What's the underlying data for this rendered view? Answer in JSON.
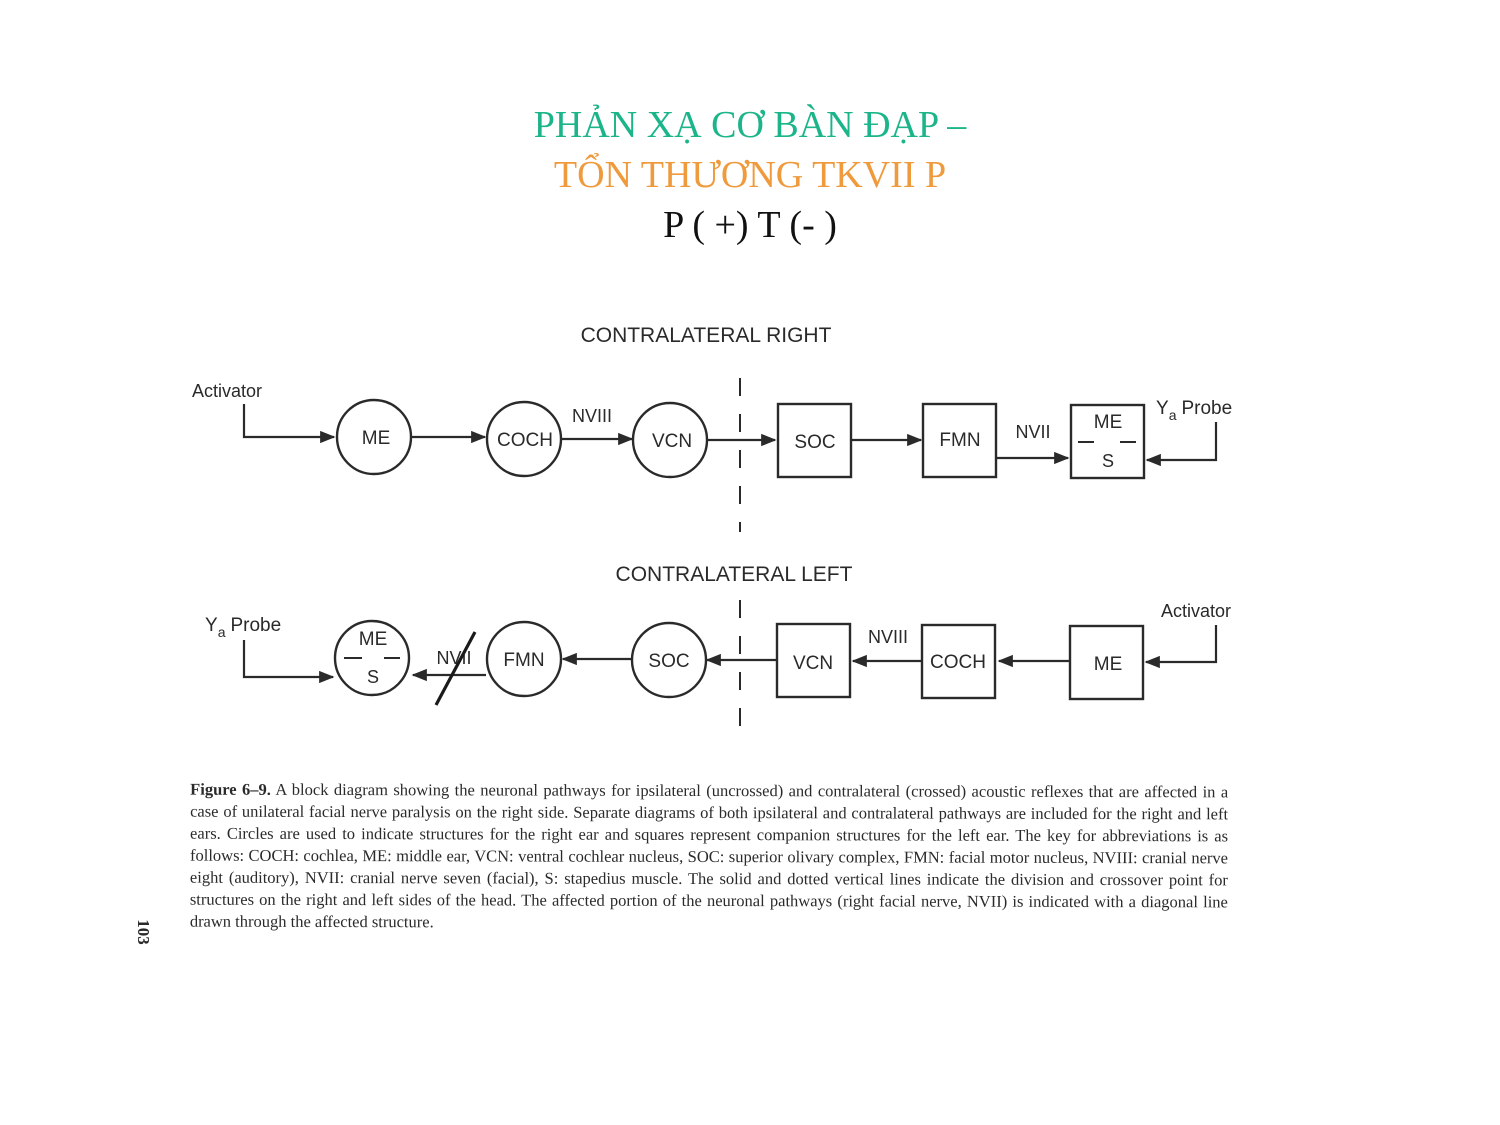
{
  "slide": {
    "title_line_1": "PHẢN XẠ CƠ BÀN ĐẠP –",
    "title_line_2": "TỔN THƯƠNG TKVII P",
    "title_line_3": "P ( +) T (- )",
    "colors": {
      "line_1": "#1cb58a",
      "line_2": "#ef9a3c",
      "line_3": "#111111"
    }
  },
  "diagram": {
    "right": {
      "heading": "CONTRALATERAL RIGHT",
      "activator": "Activator",
      "probe_y": "Y",
      "probe_sub": "a",
      "probe_word": "Probe",
      "me": "ME",
      "coch": "COCH",
      "nviii": "NVIII",
      "vcn": "VCN",
      "soc": "SOC",
      "fmn": "FMN",
      "nvii": "NVII",
      "mes_top": "ME",
      "mes_bottom": "S"
    },
    "left": {
      "heading": "CONTRALATERAL LEFT",
      "activator": "Activator",
      "probe_y": "Y",
      "probe_sub": "a",
      "probe_word": "Probe",
      "me": "ME",
      "coch": "COCH",
      "nviii": "NVIII",
      "vcn": "VCN",
      "soc": "SOC",
      "fmn": "FMN",
      "nvii": "NVII",
      "mes_top": "ME",
      "mes_bottom": "S"
    }
  },
  "caption": {
    "label": "Figure 6–9.",
    "text": "A block diagram showing the neuronal pathways for ipsilateral (uncrossed) and contralateral (crossed) acoustic reflexes that are affected in a case of unilateral facial nerve paralysis on the right side. Separate diagrams of both ipsilateral and contralateral pathways are included for the right and left ears. Circles are used to indicate structures for the right ear and squares represent companion structures for the left ear. The key for abbreviations is as follows: COCH: cochlea, ME: middle ear, VCN: ventral cochlear nucleus, SOC: superior olivary complex, FMN: facial motor nucleus, NVIII: cranial nerve eight (auditory), NVII: cranial nerve seven (facial), S: stapedius muscle. The solid and dotted vertical lines indicate the division and crossover point for structures on the right and left sides of the head. The affected portion of the neuronal pathways (right facial nerve, NVII) is indicated with a diagonal line drawn through the affected structure."
  },
  "page_number": "103"
}
